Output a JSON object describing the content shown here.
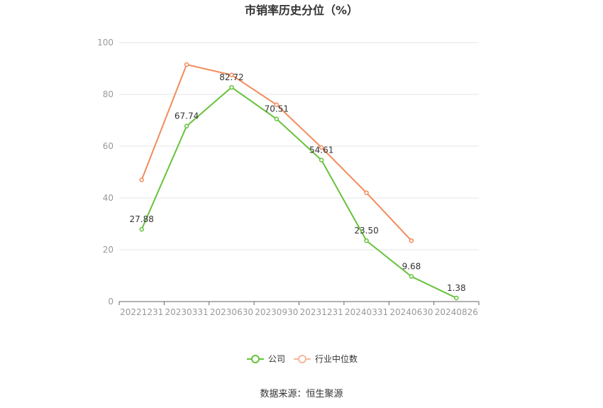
{
  "chart_data": {
    "type": "line",
    "title": "市销率历史分位（%）",
    "categories": [
      "20221231",
      "20230331",
      "20230630",
      "20230930",
      "20231231",
      "20240331",
      "20240630",
      "20240826"
    ],
    "ylim": [
      0,
      100
    ],
    "yticks": [
      0,
      20,
      40,
      60,
      80,
      100
    ],
    "grid": true,
    "legend_position": "bottom",
    "series": [
      {
        "name": "公司",
        "color": "#67c23a",
        "values": [
          27.88,
          67.74,
          82.72,
          70.51,
          54.61,
          23.5,
          9.68,
          1.38
        ],
        "labels": [
          "27.88",
          "67.74",
          "82.72",
          "70.51",
          "54.61",
          "23.50",
          "9.68",
          "1.38"
        ]
      },
      {
        "name": "行业中位数",
        "color": "#f28b5b",
        "values": [
          47,
          91.5,
          87.5,
          76,
          59.5,
          42,
          23.5,
          null
        ]
      }
    ],
    "source": "数据来源：恒生聚源"
  }
}
